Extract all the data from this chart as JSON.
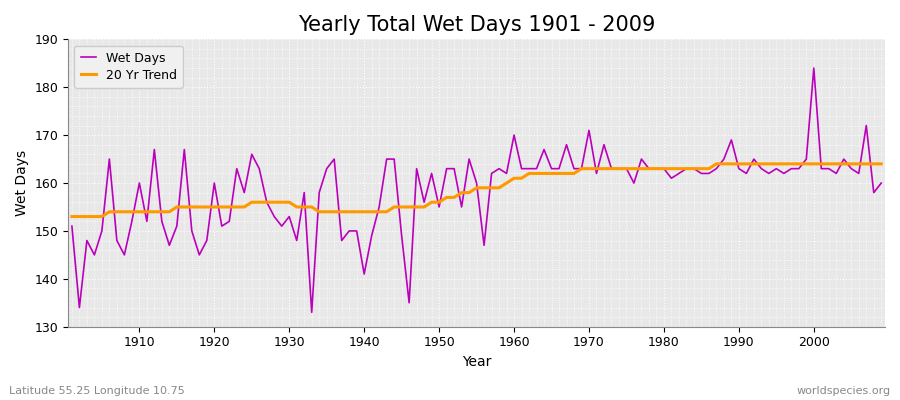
{
  "title": "Yearly Total Wet Days 1901 - 2009",
  "xlabel": "Year",
  "ylabel": "Wet Days",
  "lat_lon_label": "Latitude 55.25 Longitude 10.75",
  "watermark": "worldspecies.org",
  "ylim": [
    130,
    190
  ],
  "yticks": [
    130,
    140,
    150,
    160,
    170,
    180,
    190
  ],
  "years": [
    1901,
    1902,
    1903,
    1904,
    1905,
    1906,
    1907,
    1908,
    1909,
    1910,
    1911,
    1912,
    1913,
    1914,
    1915,
    1916,
    1917,
    1918,
    1919,
    1920,
    1921,
    1922,
    1923,
    1924,
    1925,
    1926,
    1927,
    1928,
    1929,
    1930,
    1931,
    1932,
    1933,
    1934,
    1935,
    1936,
    1937,
    1938,
    1939,
    1940,
    1941,
    1942,
    1943,
    1944,
    1945,
    1946,
    1947,
    1948,
    1949,
    1950,
    1951,
    1952,
    1953,
    1954,
    1955,
    1956,
    1957,
    1958,
    1959,
    1960,
    1961,
    1962,
    1963,
    1964,
    1965,
    1966,
    1967,
    1968,
    1969,
    1970,
    1971,
    1972,
    1973,
    1974,
    1975,
    1976,
    1977,
    1978,
    1979,
    1980,
    1981,
    1982,
    1983,
    1984,
    1985,
    1986,
    1987,
    1988,
    1989,
    1990,
    1991,
    1992,
    1993,
    1994,
    1995,
    1996,
    1997,
    1998,
    1999,
    2000,
    2001,
    2002,
    2003,
    2004,
    2005,
    2006,
    2007,
    2008,
    2009
  ],
  "wet_days": [
    151,
    134,
    148,
    145,
    150,
    165,
    148,
    145,
    152,
    160,
    152,
    167,
    152,
    147,
    151,
    167,
    150,
    145,
    148,
    160,
    151,
    152,
    163,
    158,
    166,
    163,
    156,
    153,
    151,
    153,
    148,
    158,
    133,
    158,
    163,
    165,
    148,
    150,
    150,
    141,
    149,
    155,
    165,
    165,
    149,
    135,
    163,
    156,
    162,
    155,
    163,
    163,
    155,
    165,
    160,
    147,
    162,
    163,
    162,
    170,
    163,
    163,
    163,
    167,
    163,
    163,
    168,
    163,
    163,
    171,
    162,
    168,
    163,
    163,
    163,
    160,
    165,
    163,
    163,
    163,
    161,
    162,
    163,
    163,
    162,
    162,
    163,
    165,
    169,
    163,
    162,
    165,
    163,
    162,
    163,
    162,
    163,
    163,
    165,
    184,
    163,
    163,
    162,
    165,
    163,
    162,
    172,
    158,
    160
  ],
  "trend": [
    153,
    153,
    153,
    153,
    153,
    154,
    154,
    154,
    154,
    154,
    154,
    154,
    154,
    154,
    155,
    155,
    155,
    155,
    155,
    155,
    155,
    155,
    155,
    155,
    156,
    156,
    156,
    156,
    156,
    156,
    155,
    155,
    155,
    154,
    154,
    154,
    154,
    154,
    154,
    154,
    154,
    154,
    154,
    155,
    155,
    155,
    155,
    155,
    156,
    156,
    157,
    157,
    158,
    158,
    159,
    159,
    159,
    159,
    160,
    161,
    161,
    162,
    162,
    162,
    162,
    162,
    162,
    162,
    163,
    163,
    163,
    163,
    163,
    163,
    163,
    163,
    163,
    163,
    163,
    163,
    163,
    163,
    163,
    163,
    163,
    163,
    164,
    164,
    164,
    164,
    164,
    164,
    164,
    164,
    164,
    164,
    164,
    164,
    164,
    164,
    164,
    164,
    164,
    164,
    164,
    164,
    164,
    164,
    164
  ],
  "line_color": "#bb00bb",
  "trend_color": "#ff9900",
  "bg_color": "#e8e8e8",
  "grid_color": "#ffffff",
  "title_fontsize": 15,
  "label_fontsize": 10,
  "tick_fontsize": 9,
  "legend_fontsize": 9
}
